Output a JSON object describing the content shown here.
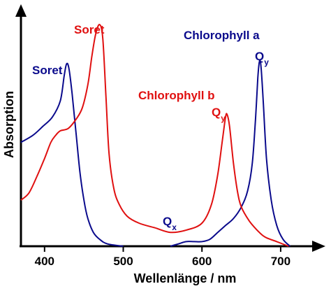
{
  "chart_data": {
    "type": "line",
    "title": "",
    "xlabel": "Wellenlänge / nm",
    "ylabel": "Absorption",
    "xlim": [
      370,
      740
    ],
    "ylim": [
      0,
      1.0
    ],
    "x_ticks": [
      400,
      500,
      600,
      700
    ],
    "x_tick_labels": [
      "400",
      "500",
      "600",
      "700"
    ],
    "grid": false,
    "legend": "none",
    "series": [
      {
        "name": "Chlorophyll a",
        "color": "#0a0a8c",
        "points": [
          [
            370,
            0.45
          ],
          [
            385,
            0.48
          ],
          [
            398,
            0.52
          ],
          [
            410,
            0.56
          ],
          [
            420,
            0.63
          ],
          [
            425,
            0.74
          ],
          [
            428,
            0.79
          ],
          [
            431,
            0.77
          ],
          [
            435,
            0.66
          ],
          [
            440,
            0.49
          ],
          [
            445,
            0.32
          ],
          [
            450,
            0.2
          ],
          [
            455,
            0.12
          ],
          [
            462,
            0.06
          ],
          [
            470,
            0.03
          ],
          [
            480,
            0.01
          ],
          [
            500,
            0.0
          ]
        ]
      },
      {
        "name": "Chlorophyll a",
        "color": "#0a0a8c",
        "points": [
          [
            560,
            0.0
          ],
          [
            570,
            0.01
          ],
          [
            580,
            0.02
          ],
          [
            590,
            0.02
          ],
          [
            600,
            0.02
          ],
          [
            610,
            0.03
          ],
          [
            620,
            0.06
          ],
          [
            630,
            0.09
          ],
          [
            640,
            0.12
          ],
          [
            650,
            0.17
          ],
          [
            658,
            0.24
          ],
          [
            664,
            0.36
          ],
          [
            668,
            0.55
          ],
          [
            671,
            0.73
          ],
          [
            673,
            0.8
          ],
          [
            675,
            0.78
          ],
          [
            678,
            0.62
          ],
          [
            682,
            0.38
          ],
          [
            688,
            0.2
          ],
          [
            695,
            0.09
          ],
          [
            703,
            0.03
          ],
          [
            712,
            0.0
          ]
        ]
      },
      {
        "name": "Chlorophyll b",
        "color": "#e01010",
        "points": [
          [
            370,
            0.2
          ],
          [
            380,
            0.23
          ],
          [
            390,
            0.3
          ],
          [
            400,
            0.38
          ],
          [
            408,
            0.45
          ],
          [
            414,
            0.48
          ],
          [
            420,
            0.5
          ],
          [
            430,
            0.51
          ],
          [
            440,
            0.55
          ],
          [
            448,
            0.6
          ],
          [
            455,
            0.7
          ],
          [
            460,
            0.82
          ],
          [
            465,
            0.92
          ],
          [
            470,
            0.96
          ],
          [
            474,
            0.9
          ],
          [
            478,
            0.65
          ],
          [
            482,
            0.4
          ],
          [
            488,
            0.25
          ],
          [
            495,
            0.18
          ],
          [
            505,
            0.13
          ],
          [
            520,
            0.1
          ],
          [
            540,
            0.08
          ],
          [
            560,
            0.06
          ],
          [
            580,
            0.07
          ],
          [
            600,
            0.1
          ],
          [
            612,
            0.18
          ],
          [
            620,
            0.31
          ],
          [
            626,
            0.46
          ],
          [
            630,
            0.56
          ],
          [
            632,
            0.57
          ],
          [
            635,
            0.52
          ],
          [
            640,
            0.36
          ],
          [
            645,
            0.24
          ],
          [
            650,
            0.17
          ],
          [
            660,
            0.11
          ],
          [
            670,
            0.07
          ],
          [
            680,
            0.04
          ],
          [
            695,
            0.02
          ],
          [
            710,
            0.0
          ]
        ]
      }
    ],
    "annotations": [
      {
        "text": "Soret",
        "sub": "",
        "color": "#0a0a8c"
      },
      {
        "text": "Soret",
        "sub": "",
        "color": "#e01010"
      },
      {
        "text": "Chlorophyll a",
        "sub": "",
        "color": "#0a0a8c"
      },
      {
        "text": "Chlorophyll b",
        "sub": "",
        "color": "#e01010"
      },
      {
        "text": "Q",
        "sub": "y",
        "color": "#e01010"
      },
      {
        "text": "Q",
        "sub": "y",
        "color": "#0a0a8c"
      },
      {
        "text": "Q",
        "sub": "x",
        "color": "#0a0a8c"
      }
    ]
  }
}
